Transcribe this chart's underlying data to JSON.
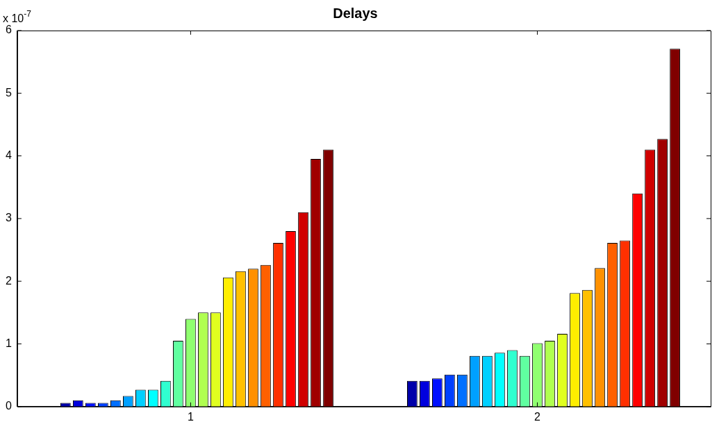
{
  "chart_data": {
    "type": "bar",
    "title": "Delays",
    "categories": [
      "1",
      "2"
    ],
    "series": [
      {
        "color": "#00008f",
        "values": [
          0,
          0
        ]
      },
      {
        "color": "#0000aa",
        "values": [
          0.06,
          0.41
        ]
      },
      {
        "color": "#0000dd",
        "values": [
          0.1,
          0.41
        ]
      },
      {
        "color": "#0010ff",
        "values": [
          0.06,
          0.45
        ]
      },
      {
        "color": "#0040ff",
        "values": [
          0.06,
          0.51
        ]
      },
      {
        "color": "#0070ff",
        "values": [
          0.1,
          0.51
        ]
      },
      {
        "color": "#00a0ff",
        "values": [
          0.17,
          0.81
        ]
      },
      {
        "color": "#00d0ff",
        "values": [
          0.27,
          0.81
        ]
      },
      {
        "color": "#00ffff",
        "values": [
          0.27,
          0.86
        ]
      },
      {
        "color": "#30ffd0",
        "values": [
          0.41,
          0.9
        ]
      },
      {
        "color": "#60ffa0",
        "values": [
          1.05,
          0.81
        ]
      },
      {
        "color": "#90ff70",
        "values": [
          1.4,
          1.01
        ]
      },
      {
        "color": "#b0ff50",
        "values": [
          1.5,
          1.05
        ]
      },
      {
        "color": "#e0ff20",
        "values": [
          1.5,
          1.16
        ]
      },
      {
        "color": "#ffee00",
        "values": [
          2.06,
          1.81
        ]
      },
      {
        "color": "#ffc000",
        "values": [
          2.16,
          1.86
        ]
      },
      {
        "color": "#ff9000",
        "values": [
          2.2,
          2.21
        ]
      },
      {
        "color": "#ff6000",
        "values": [
          2.26,
          2.61
        ]
      },
      {
        "color": "#ff3000",
        "values": [
          2.61,
          2.65
        ]
      },
      {
        "color": "#ff0000",
        "values": [
          2.8,
          3.4
        ]
      },
      {
        "color": "#d00000",
        "values": [
          3.1,
          4.1
        ]
      },
      {
        "color": "#a00000",
        "values": [
          3.95,
          4.27
        ]
      },
      {
        "color": "#800000",
        "values": [
          4.1,
          5.71
        ]
      }
    ],
    "ylim": [
      0,
      6
    ],
    "yticks": [
      0,
      1,
      2,
      3,
      4,
      5,
      6
    ],
    "grid": false,
    "legend": false,
    "annotations": [
      "x 10$^{-7}$"
    ]
  }
}
